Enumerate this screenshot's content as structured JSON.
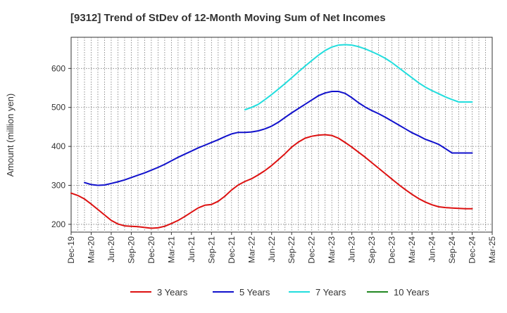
{
  "chart_data": {
    "type": "line",
    "title": "[9312]  Trend of StDev of 12-Month Moving Sum of Net Incomes",
    "ylabel": "Amount (million yen)",
    "xlabel": "",
    "ylim": [
      180,
      680
    ],
    "yticks": [
      200,
      300,
      400,
      500,
      600
    ],
    "x_tick_labels": [
      "Dec-19",
      "Mar-20",
      "Jun-20",
      "Sep-20",
      "Dec-20",
      "Mar-21",
      "Jun-21",
      "Sep-21",
      "Dec-21",
      "Mar-22",
      "Jun-22",
      "Sep-22",
      "Dec-22",
      "Mar-23",
      "Jun-23",
      "Sep-23",
      "Dec-23",
      "Mar-24",
      "Jun-24",
      "Sep-24",
      "Dec-24",
      "Mar-25"
    ],
    "grid": true,
    "legend_position": "bottom",
    "series": [
      {
        "name": "3 Years",
        "color": "#dd1111",
        "x": [
          "Dec-19",
          "Jan-20",
          "Feb-20",
          "Mar-20",
          "Apr-20",
          "May-20",
          "Jun-20",
          "Jul-20",
          "Aug-20",
          "Sep-20",
          "Oct-20",
          "Nov-20",
          "Dec-20",
          "Jan-21",
          "Feb-21",
          "Mar-21",
          "Apr-21",
          "May-21",
          "Jun-21",
          "Jul-21",
          "Aug-21",
          "Sep-21",
          "Oct-21",
          "Nov-21",
          "Dec-21",
          "Jan-22",
          "Feb-22",
          "Mar-22",
          "Apr-22",
          "May-22",
          "Jun-22",
          "Jul-22",
          "Aug-22",
          "Sep-22",
          "Oct-22",
          "Nov-22",
          "Dec-22",
          "Jan-23",
          "Feb-23",
          "Mar-23",
          "Apr-23",
          "May-23",
          "Jun-23",
          "Jul-23",
          "Aug-23",
          "Sep-23",
          "Oct-23",
          "Nov-23",
          "Dec-23",
          "Jan-24",
          "Feb-24",
          "Mar-24",
          "Apr-24",
          "May-24",
          "Jun-24",
          "Jul-24",
          "Aug-24",
          "Sep-24",
          "Oct-24",
          "Nov-24",
          "Dec-24"
        ],
        "values": [
          280,
          274,
          265,
          252,
          238,
          224,
          210,
          201,
          196,
          195,
          194,
          192,
          190,
          191,
          195,
          202,
          210,
          220,
          231,
          242,
          249,
          251,
          259,
          272,
          288,
          301,
          310,
          317,
          327,
          338,
          351,
          366,
          381,
          398,
          411,
          421,
          426,
          429,
          430,
          428,
          421,
          410,
          398,
          385,
          372,
          358,
          344,
          330,
          316,
          302,
          289,
          277,
          266,
          257,
          250,
          245,
          243,
          242,
          241,
          240,
          240
        ]
      },
      {
        "name": "5 Years",
        "color": "#1111cc",
        "x": [
          "Feb-20",
          "Mar-20",
          "Apr-20",
          "May-20",
          "Jun-20",
          "Jul-20",
          "Aug-20",
          "Sep-20",
          "Oct-20",
          "Nov-20",
          "Dec-20",
          "Jan-21",
          "Feb-21",
          "Mar-21",
          "Apr-21",
          "May-21",
          "Jun-21",
          "Jul-21",
          "Aug-21",
          "Sep-21",
          "Oct-21",
          "Nov-21",
          "Dec-21",
          "Jan-22",
          "Feb-22",
          "Mar-22",
          "Apr-22",
          "May-22",
          "Jun-22",
          "Jul-22",
          "Aug-22",
          "Sep-22",
          "Oct-22",
          "Nov-22",
          "Dec-22",
          "Jan-23",
          "Feb-23",
          "Mar-23",
          "Apr-23",
          "May-23",
          "Jun-23",
          "Jul-23",
          "Aug-23",
          "Sep-23",
          "Oct-23",
          "Nov-23",
          "Dec-23",
          "Jan-24",
          "Feb-24",
          "Mar-24",
          "Apr-24",
          "May-24",
          "Jun-24",
          "Jul-24",
          "Aug-24",
          "Sep-24",
          "Oct-24",
          "Nov-24",
          "Dec-24"
        ],
        "values": [
          307,
          302,
          300,
          301,
          305,
          309,
          314,
          320,
          326,
          332,
          339,
          346,
          354,
          363,
          372,
          380,
          388,
          396,
          403,
          410,
          417,
          425,
          432,
          436,
          436,
          437,
          440,
          445,
          452,
          462,
          474,
          486,
          497,
          508,
          519,
          530,
          537,
          541,
          541,
          536,
          525,
          512,
          501,
          492,
          484,
          475,
          465,
          455,
          445,
          435,
          427,
          418,
          412,
          405,
          394,
          383,
          383,
          383,
          383
        ]
      },
      {
        "name": "7 Years",
        "color": "#22dddd",
        "x": [
          "Feb-22",
          "Mar-22",
          "Apr-22",
          "May-22",
          "Jun-22",
          "Jul-22",
          "Aug-22",
          "Sep-22",
          "Oct-22",
          "Nov-22",
          "Dec-22",
          "Jan-23",
          "Feb-23",
          "Mar-23",
          "Apr-23",
          "May-23",
          "Jun-23",
          "Jul-23",
          "Aug-23",
          "Sep-23",
          "Oct-23",
          "Nov-23",
          "Dec-23",
          "Jan-24",
          "Feb-24",
          "Mar-24",
          "Apr-24",
          "May-24",
          "Jun-24",
          "Jul-24",
          "Aug-24",
          "Sep-24",
          "Oct-24",
          "Nov-24",
          "Dec-24"
        ],
        "values": [
          494,
          500,
          508,
          520,
          533,
          547,
          561,
          576,
          591,
          606,
          620,
          634,
          646,
          655,
          660,
          661,
          660,
          656,
          650,
          643,
          635,
          626,
          615,
          602,
          589,
          576,
          563,
          552,
          543,
          535,
          527,
          520,
          514,
          514,
          514
        ]
      },
      {
        "name": "10 Years",
        "color": "#228822",
        "x": [],
        "values": []
      }
    ]
  }
}
